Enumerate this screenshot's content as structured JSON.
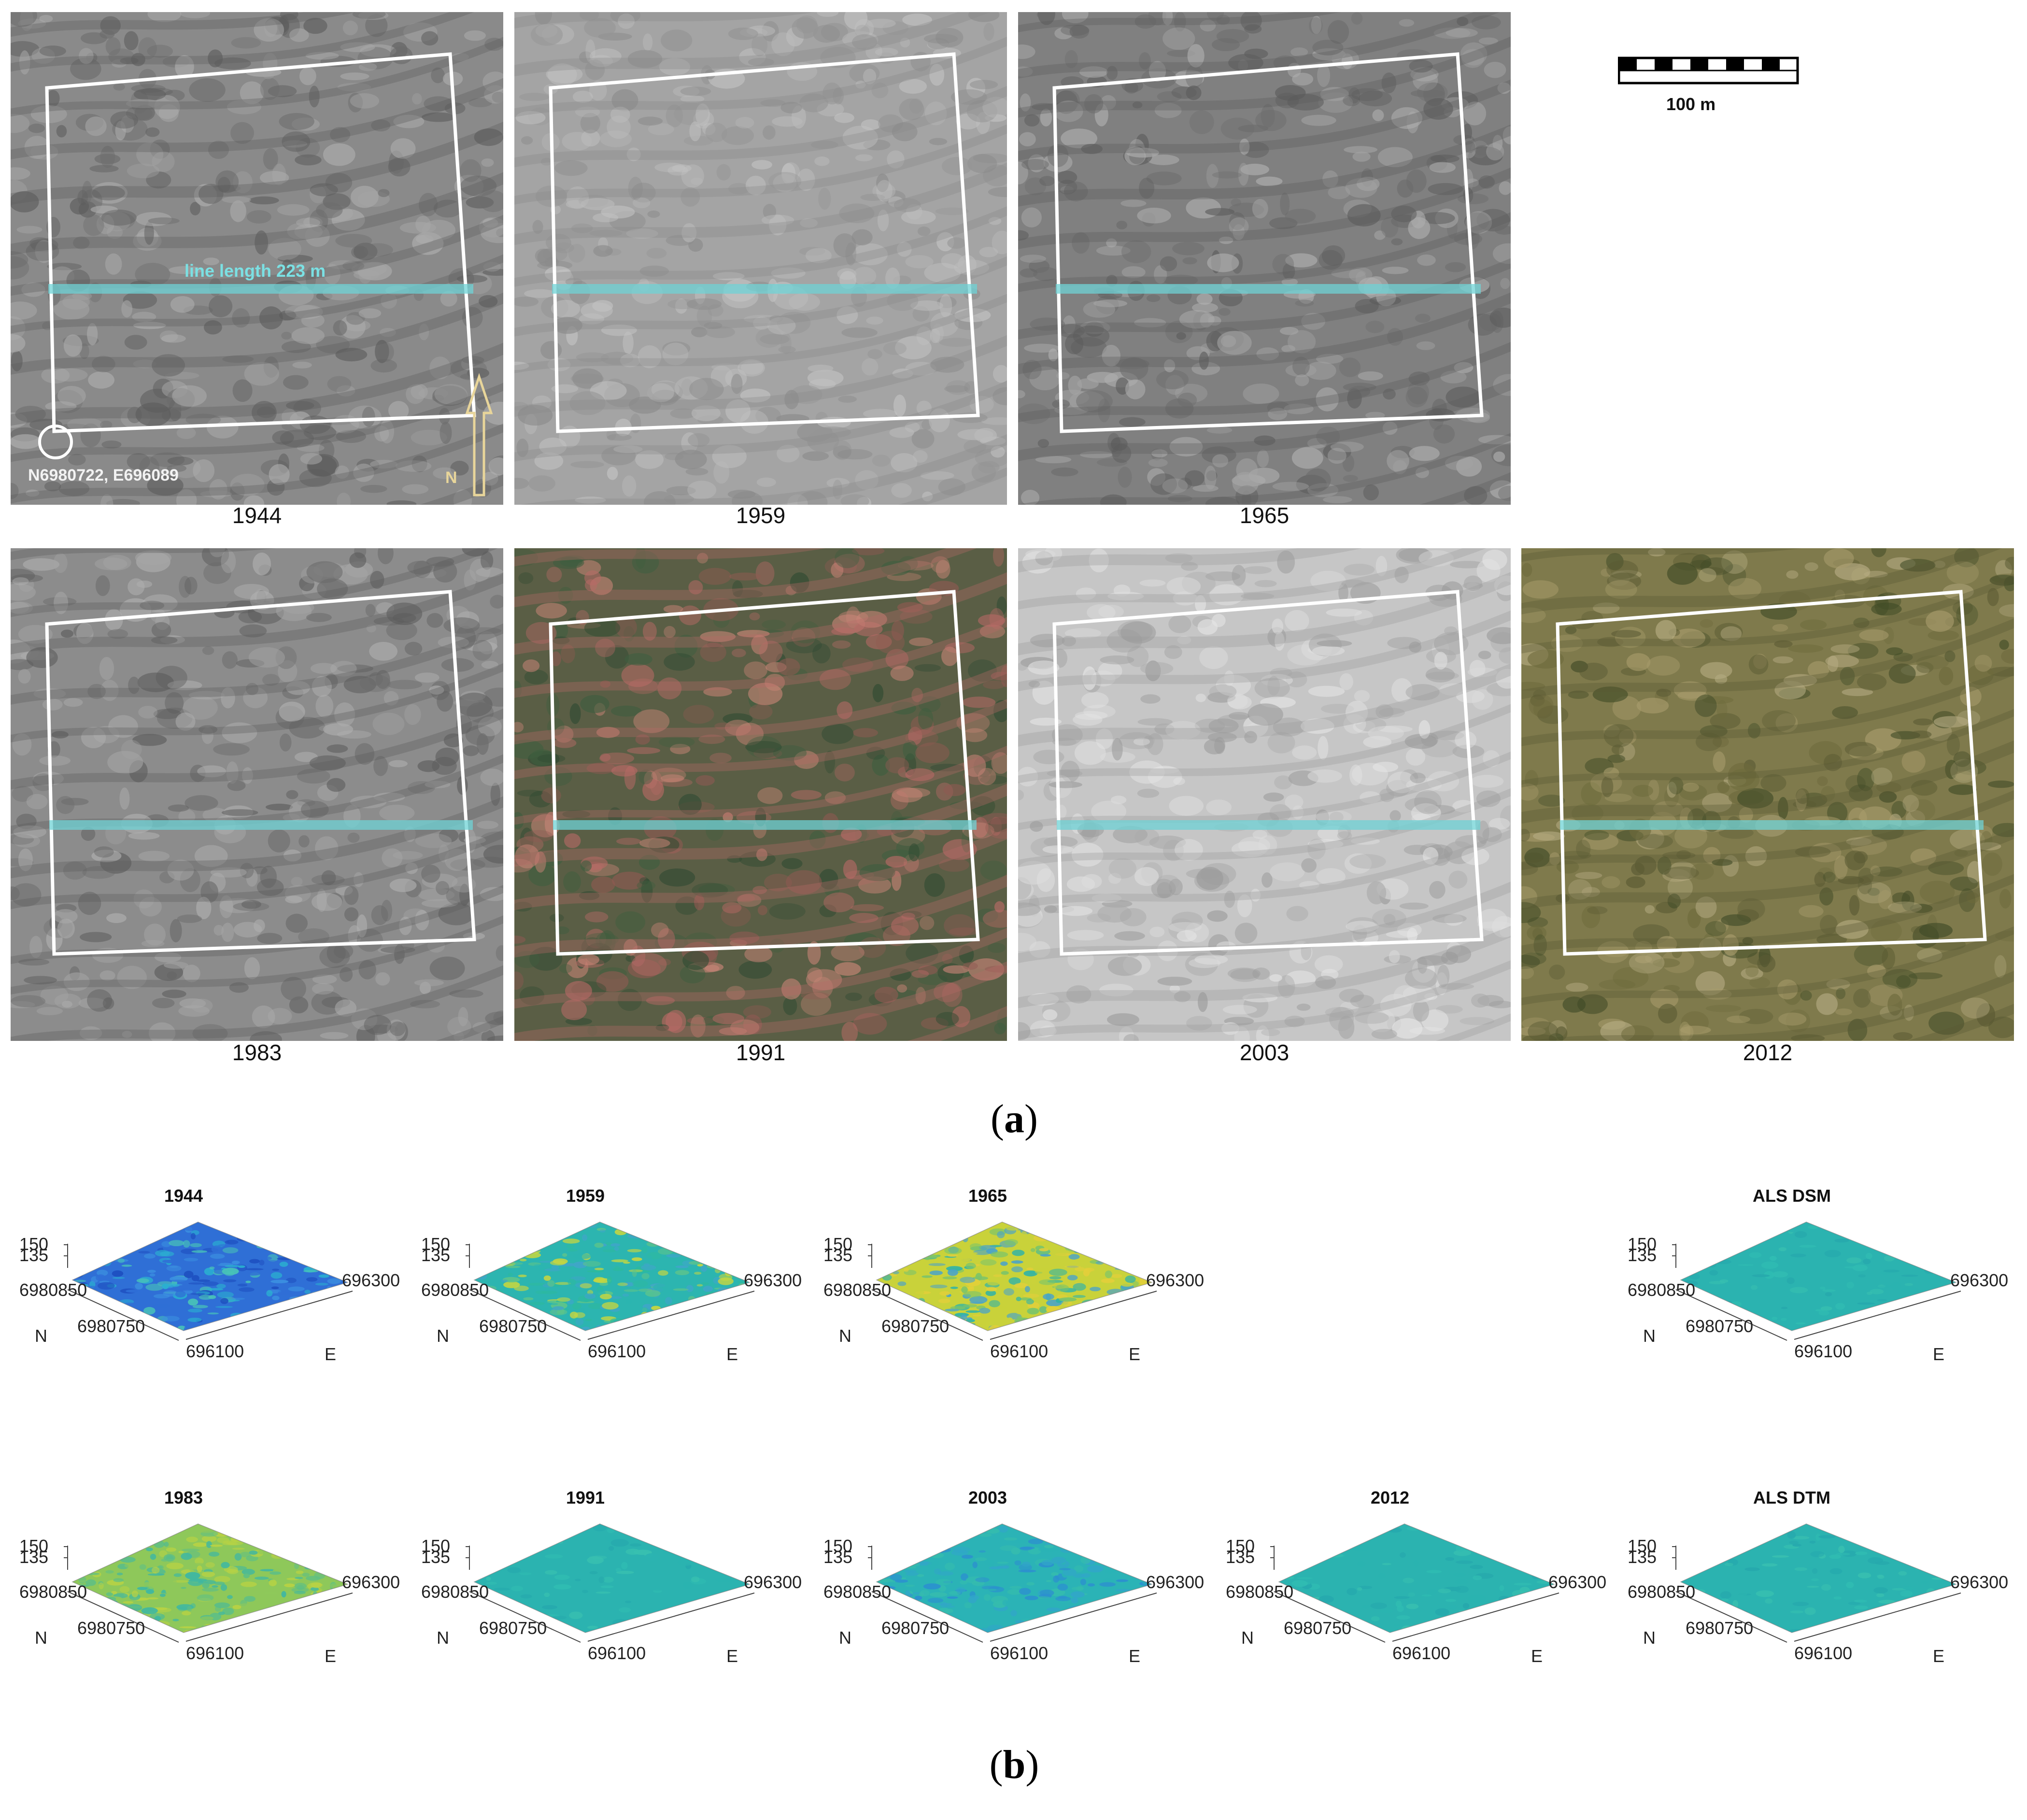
{
  "panel_a": {
    "letter": "a",
    "photos": [
      {
        "year": "1944",
        "tone": "gray-dark",
        "base": "#8a8a8a"
      },
      {
        "year": "1959",
        "tone": "gray-light",
        "base": "#a4a4a4"
      },
      {
        "year": "1965",
        "tone": "gray-mid",
        "base": "#808080"
      },
      {
        "year": "1983",
        "tone": "gray-mid",
        "base": "#8c8c8c"
      },
      {
        "year": "1991",
        "tone": "false-color",
        "base": "#5a5e45"
      },
      {
        "year": "2003",
        "tone": "gray-pale",
        "base": "#c6c6c6"
      },
      {
        "year": "2012",
        "tone": "natural-color",
        "base": "#7f7a4c"
      }
    ],
    "line_label": "line length 223 m",
    "coordinate_label": "N6980722, E696089",
    "north_label": "N",
    "scale_bar_label": "100 m",
    "colors": {
      "outline": "#ffffff",
      "transect": "#6fd3d6",
      "north_arrow": "#e8d59a"
    }
  },
  "panel_b": {
    "letter": "b",
    "plots": [
      {
        "title": "1944",
        "palette": "blue"
      },
      {
        "title": "1959",
        "palette": "teal-yellow"
      },
      {
        "title": "1965",
        "palette": "yellow-teal"
      },
      {
        "title": "ALS DSM",
        "palette": "teal"
      },
      {
        "title": "1983",
        "palette": "green-yellow"
      },
      {
        "title": "1991",
        "palette": "teal"
      },
      {
        "title": "2003",
        "palette": "teal-blue"
      },
      {
        "title": "2012",
        "palette": "teal"
      },
      {
        "title": "ALS DTM",
        "palette": "teal"
      }
    ],
    "axis": {
      "z_ticks": [
        "150",
        "135"
      ],
      "north_ticks": [
        "6980850",
        "6980750"
      ],
      "east_ticks": [
        "696300",
        "696100"
      ],
      "north_label": "N",
      "east_label": "E"
    }
  }
}
